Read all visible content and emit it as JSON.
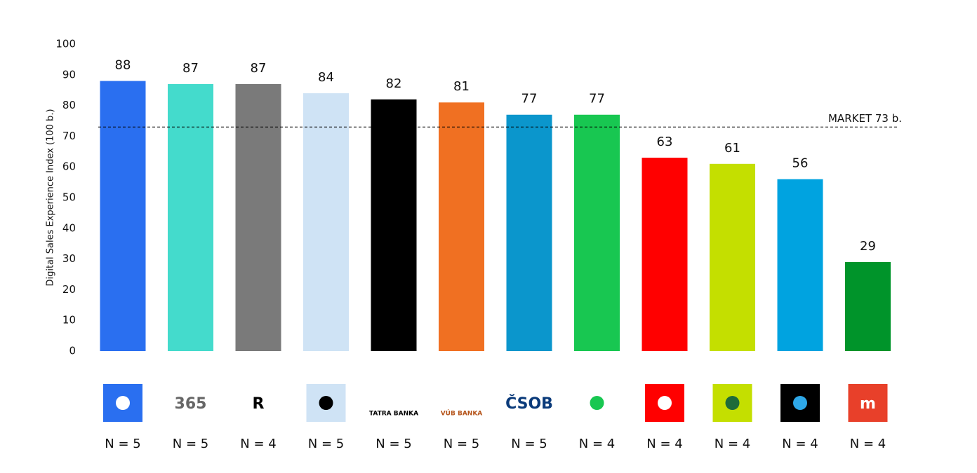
{
  "chart_data": {
    "type": "bar",
    "y_label": "Digital Sales Experience Index (100 b.)",
    "categories": [
      "N = 5",
      "N = 5",
      "N = 4",
      "N = 5",
      "N = 5",
      "N = 5",
      "N = 5",
      "N = 4",
      "N = 4",
      "N = 4",
      "N = 4",
      "N = 4"
    ],
    "logo_texts": [
      null,
      "365",
      "R",
      null,
      "TATRA BANKA",
      "VÚB BANKA",
      "ČSOB",
      null,
      null,
      null,
      null,
      "m"
    ],
    "values": [
      88,
      87,
      87,
      84,
      82,
      81,
      77,
      77,
      63,
      61,
      56,
      29
    ],
    "colors": [
      "#2a6ff0",
      "#44dbcc",
      "#7a7a7a",
      "#cfe3f5",
      "#000000",
      "#f07022",
      "#0b96cc",
      "#18c751",
      "#ff0000",
      "#c4df00",
      "#00a3e0",
      "#00942a"
    ],
    "ylim": [
      0,
      100
    ],
    "yticks": [
      0,
      10,
      20,
      30,
      40,
      50,
      60,
      70,
      80,
      90,
      100
    ],
    "reference_line": {
      "value": 73,
      "label": "MARKET 73 b."
    }
  }
}
